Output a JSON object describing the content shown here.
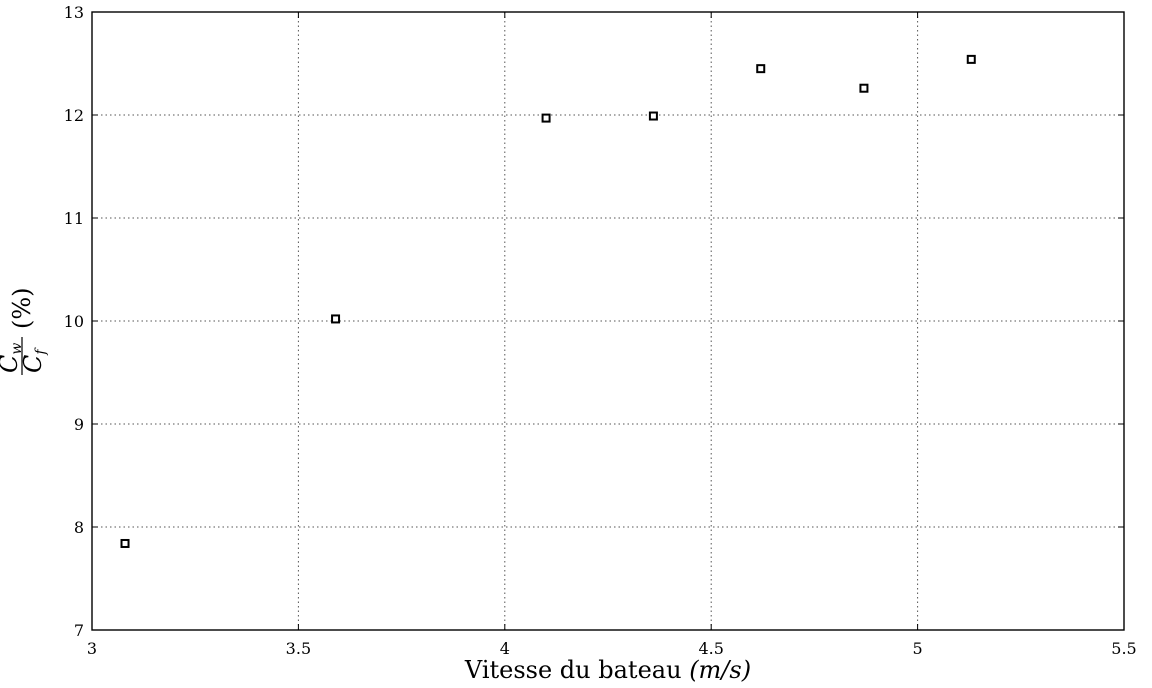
{
  "chart_data": {
    "type": "scatter",
    "title": "",
    "xlabel": "Vitesse du bateau (m/s)",
    "ylabel": "Cw/Cf (%)",
    "ylabel_parts": {
      "numerator": "C",
      "numerator_sub": "w",
      "denominator": "C",
      "denominator_sub": "f",
      "suffix": "(%)"
    },
    "xlabel_parts": {
      "text": "Vitesse du bateau",
      "unit": "(m/s)"
    },
    "xlim": [
      3,
      5.5
    ],
    "ylim": [
      7,
      13
    ],
    "xticks": [
      3,
      3.5,
      4,
      4.5,
      5,
      5.5
    ],
    "xtick_labels": [
      "3",
      "3.5",
      "4",
      "4.5",
      "5",
      "5.5"
    ],
    "yticks": [
      7,
      8,
      9,
      10,
      11,
      12,
      13
    ],
    "ytick_labels": [
      "7",
      "8",
      "9",
      "10",
      "11",
      "12",
      "13"
    ],
    "grid": true,
    "marker": "square",
    "colors": {
      "marker_edge": "#000000",
      "marker_face": "#ffffff",
      "grid": "#555555"
    },
    "series": [
      {
        "x": [
          3.08,
          3.59,
          4.1,
          4.36,
          4.62,
          4.87,
          5.13
        ],
        "y": [
          7.84,
          10.02,
          11.97,
          11.99,
          12.45,
          12.26,
          12.54
        ]
      }
    ]
  }
}
